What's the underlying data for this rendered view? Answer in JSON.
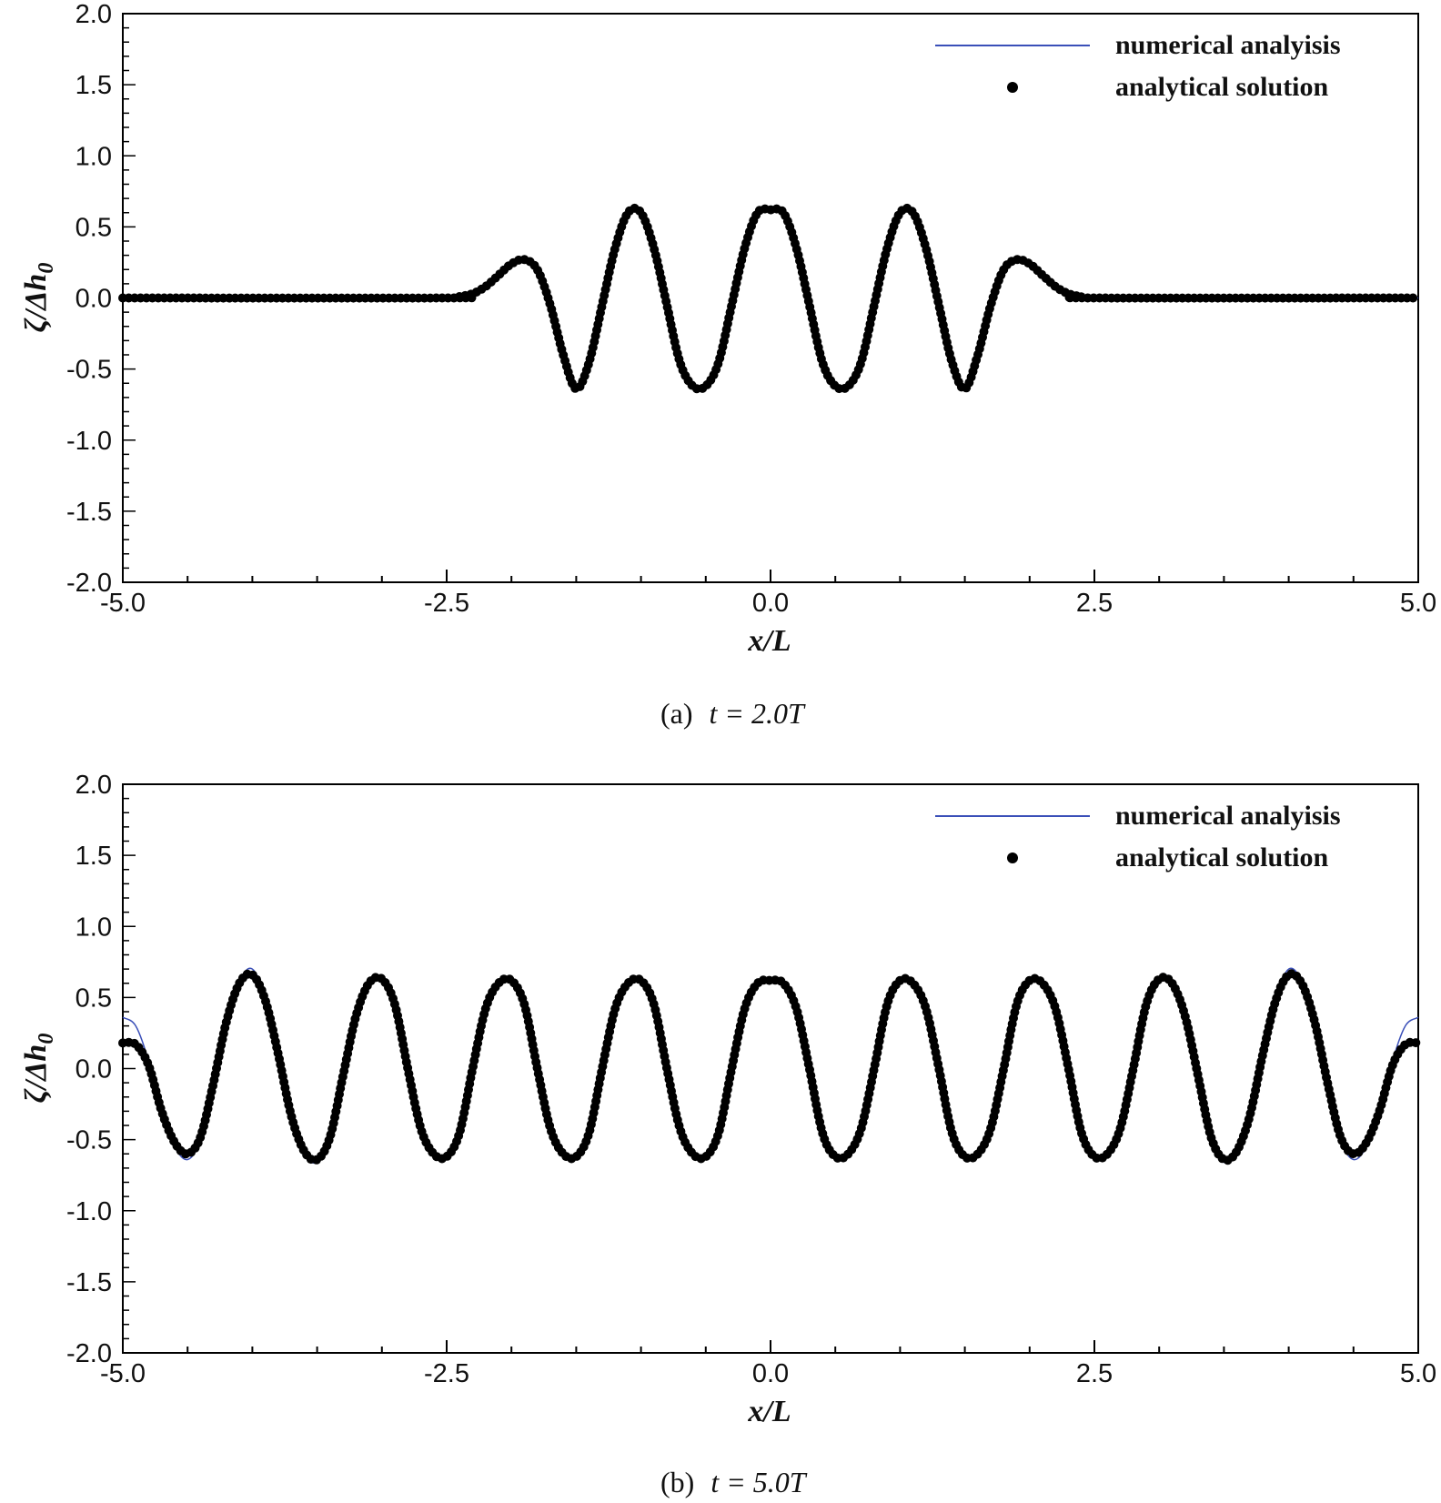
{
  "colors": {
    "numerical_line": "#3a4fb8",
    "analytical_dots": "#000000",
    "axis": "#000000"
  },
  "chart_data": [
    {
      "type": "line",
      "caption": "(a)",
      "caption_math": "t = 2.0T",
      "xlabel": "x/L",
      "ylabel": "ζ/Δh",
      "ylabel_sub": "0",
      "xlim": [
        -5.0,
        5.0
      ],
      "ylim": [
        -2.0,
        2.0
      ],
      "xticks": [
        "-5.0",
        "-2.5",
        "0.0",
        "2.5",
        "5.0"
      ],
      "yticks": [
        "2.0",
        "1.5",
        "1.0",
        "0.5",
        "0.0",
        "-0.5",
        "-1.0",
        "-1.5",
        "-2.0"
      ],
      "legend_position": "top-right",
      "series": [
        {
          "name": "numerical analyisis",
          "style": "line",
          "x": [
            -5.0,
            -2.5,
            -2.4,
            -2.3,
            -2.2,
            -2.1,
            -2.0,
            -1.9,
            -1.8,
            -1.7,
            -1.6,
            -1.5,
            -1.4,
            -1.3,
            -1.2,
            -1.1,
            -1.0,
            -0.9,
            -0.8,
            -0.7,
            -0.6,
            -0.5,
            -0.4,
            -0.3,
            -0.2,
            -0.1,
            0.0,
            0.1,
            0.2,
            0.3,
            0.4,
            0.5,
            0.6,
            0.7,
            0.8,
            0.9,
            1.0,
            1.1,
            1.2,
            1.3,
            1.4,
            1.5,
            1.6,
            1.7,
            1.8,
            1.9,
            2.0,
            2.1,
            2.2,
            2.3,
            2.4,
            2.5,
            5.0
          ],
          "y": [
            0.0,
            0.0,
            0.01,
            0.03,
            0.08,
            0.16,
            0.24,
            0.27,
            0.2,
            -0.05,
            -0.4,
            -0.64,
            -0.45,
            -0.05,
            0.35,
            0.6,
            0.6,
            0.35,
            -0.05,
            -0.45,
            -0.62,
            -0.62,
            -0.45,
            -0.05,
            0.35,
            0.6,
            0.62,
            0.6,
            0.35,
            -0.05,
            -0.45,
            -0.62,
            -0.62,
            -0.45,
            -0.05,
            0.35,
            0.6,
            0.6,
            0.35,
            -0.05,
            -0.45,
            -0.64,
            -0.4,
            -0.05,
            0.2,
            0.27,
            0.24,
            0.16,
            0.08,
            0.03,
            0.01,
            0.0,
            0.0
          ]
        },
        {
          "name": "analytical solution",
          "style": "points",
          "x": [
            -5.0,
            -2.5,
            -2.4,
            -2.3,
            -2.2,
            -2.1,
            -2.0,
            -1.9,
            -1.8,
            -1.7,
            -1.6,
            -1.5,
            -1.4,
            -1.3,
            -1.2,
            -1.1,
            -1.0,
            -0.9,
            -0.8,
            -0.7,
            -0.6,
            -0.5,
            -0.4,
            -0.3,
            -0.2,
            -0.1,
            0.0,
            0.1,
            0.2,
            0.3,
            0.4,
            0.5,
            0.6,
            0.7,
            0.8,
            0.9,
            1.0,
            1.1,
            1.2,
            1.3,
            1.4,
            1.5,
            1.6,
            1.7,
            1.8,
            1.9,
            2.0,
            2.1,
            2.2,
            2.3,
            2.4,
            2.5,
            5.0
          ],
          "y": [
            0.0,
            0.0,
            0.01,
            0.03,
            0.08,
            0.16,
            0.24,
            0.27,
            0.2,
            -0.05,
            -0.4,
            -0.64,
            -0.45,
            -0.05,
            0.35,
            0.6,
            0.6,
            0.35,
            -0.05,
            -0.45,
            -0.62,
            -0.62,
            -0.45,
            -0.05,
            0.35,
            0.6,
            0.62,
            0.6,
            0.35,
            -0.05,
            -0.45,
            -0.62,
            -0.62,
            -0.45,
            -0.05,
            0.35,
            0.6,
            0.6,
            0.35,
            -0.05,
            -0.45,
            -0.64,
            -0.4,
            -0.05,
            0.2,
            0.27,
            0.24,
            0.16,
            0.08,
            0.03,
            0.01,
            0.0,
            0.0
          ]
        }
      ]
    },
    {
      "type": "line",
      "caption": "(b)",
      "caption_math": "t = 5.0T",
      "xlabel": "x/L",
      "ylabel": "ζ/Δh",
      "ylabel_sub": "0",
      "xlim": [
        -5.0,
        5.0
      ],
      "ylim": [
        -2.0,
        2.0
      ],
      "xticks": [
        "-5.0",
        "-2.5",
        "0.0",
        "2.5",
        "5.0"
      ],
      "yticks": [
        "2.0",
        "1.5",
        "1.0",
        "0.5",
        "0.0",
        "-0.5",
        "-1.0",
        "-1.5",
        "-2.0"
      ],
      "legend_position": "top-right",
      "series": [
        {
          "name": "numerical analyisis",
          "style": "line",
          "x": [
            -5.0,
            -4.9,
            -4.8,
            -4.7,
            -4.6,
            -4.5,
            -4.4,
            -4.3,
            -4.2,
            -4.1,
            -4.0,
            -3.9,
            -3.8,
            -3.7,
            -3.6,
            -3.5,
            -3.4,
            -3.3,
            -3.2,
            -3.1,
            -3.0,
            -2.9,
            -2.8,
            -2.7,
            -2.6,
            -2.5,
            -2.4,
            -2.3,
            -2.2,
            -2.1,
            -2.0,
            -1.9,
            -1.8,
            -1.7,
            -1.6,
            -1.5,
            -1.4,
            -1.3,
            -1.2,
            -1.1,
            -1.0,
            -0.9,
            -0.8,
            -0.7,
            -0.6,
            -0.5,
            -0.4,
            -0.3,
            -0.2,
            -0.1,
            0.0,
            0.1,
            0.2,
            0.3,
            0.4,
            0.5,
            0.6,
            0.7,
            0.8,
            0.9,
            1.0,
            1.1,
            1.2,
            1.3,
            1.4,
            1.5,
            1.6,
            1.7,
            1.8,
            1.9,
            2.0,
            2.1,
            2.2,
            2.3,
            2.4,
            2.5,
            2.6,
            2.7,
            2.8,
            2.9,
            3.0,
            3.1,
            3.2,
            3.3,
            3.4,
            3.5,
            3.6,
            3.7,
            3.8,
            3.9,
            4.0,
            4.1,
            4.2,
            4.3,
            4.4,
            4.5,
            4.6,
            4.7,
            4.8,
            4.9,
            5.0
          ],
          "y": [
            0.36,
            0.3,
            0.05,
            -0.3,
            -0.55,
            -0.64,
            -0.5,
            -0.1,
            0.35,
            0.62,
            0.7,
            0.5,
            0.1,
            -0.35,
            -0.6,
            -0.66,
            -0.5,
            -0.05,
            0.38,
            0.62,
            0.64,
            0.45,
            0.0,
            -0.42,
            -0.6,
            -0.62,
            -0.45,
            0.0,
            0.42,
            0.6,
            0.62,
            0.45,
            0.0,
            -0.42,
            -0.6,
            -0.62,
            -0.45,
            0.0,
            0.42,
            0.6,
            0.62,
            0.45,
            0.0,
            -0.42,
            -0.6,
            -0.62,
            -0.45,
            0.0,
            0.42,
            0.6,
            0.62,
            0.6,
            0.42,
            0.0,
            -0.45,
            -0.62,
            -0.6,
            -0.42,
            0.0,
            0.45,
            0.62,
            0.6,
            0.42,
            0.0,
            -0.45,
            -0.62,
            -0.6,
            -0.42,
            0.0,
            0.45,
            0.62,
            0.6,
            0.42,
            0.0,
            -0.45,
            -0.62,
            -0.6,
            -0.42,
            0.0,
            0.45,
            0.64,
            0.62,
            0.38,
            -0.05,
            -0.5,
            -0.66,
            -0.6,
            -0.35,
            0.1,
            0.5,
            0.7,
            0.62,
            0.35,
            -0.1,
            -0.5,
            -0.64,
            -0.55,
            -0.3,
            0.05,
            0.3,
            0.36
          ]
        },
        {
          "name": "analytical solution",
          "style": "points",
          "x": [
            -5.0,
            -4.9,
            -4.8,
            -4.7,
            -4.6,
            -4.5,
            -4.4,
            -4.3,
            -4.2,
            -4.1,
            -4.0,
            -3.9,
            -3.8,
            -3.7,
            -3.6,
            -3.5,
            -3.4,
            -3.3,
            -3.2,
            -3.1,
            -3.0,
            -2.9,
            -2.8,
            -2.7,
            -2.6,
            -2.5,
            -2.4,
            -2.3,
            -2.2,
            -2.1,
            -2.0,
            -1.9,
            -1.8,
            -1.7,
            -1.6,
            -1.5,
            -1.4,
            -1.3,
            -1.2,
            -1.1,
            -1.0,
            -0.9,
            -0.8,
            -0.7,
            -0.6,
            -0.5,
            -0.4,
            -0.3,
            -0.2,
            -0.1,
            0.0,
            0.1,
            0.2,
            0.3,
            0.4,
            0.5,
            0.6,
            0.7,
            0.8,
            0.9,
            1.0,
            1.1,
            1.2,
            1.3,
            1.4,
            1.5,
            1.6,
            1.7,
            1.8,
            1.9,
            2.0,
            2.1,
            2.2,
            2.3,
            2.4,
            2.5,
            2.6,
            2.7,
            2.8,
            2.9,
            3.0,
            3.1,
            3.2,
            3.3,
            3.4,
            3.5,
            3.6,
            3.7,
            3.8,
            3.9,
            4.0,
            4.1,
            4.2,
            4.3,
            4.4,
            4.5,
            4.6,
            4.7,
            4.8,
            4.9,
            5.0
          ],
          "y": [
            0.18,
            0.17,
            0.02,
            -0.3,
            -0.52,
            -0.6,
            -0.48,
            -0.1,
            0.33,
            0.6,
            0.66,
            0.48,
            0.1,
            -0.33,
            -0.58,
            -0.64,
            -0.48,
            -0.05,
            0.37,
            0.6,
            0.63,
            0.45,
            0.0,
            -0.42,
            -0.6,
            -0.62,
            -0.45,
            0.0,
            0.42,
            0.6,
            0.62,
            0.45,
            0.0,
            -0.42,
            -0.6,
            -0.62,
            -0.45,
            0.0,
            0.42,
            0.6,
            0.62,
            0.45,
            0.0,
            -0.42,
            -0.6,
            -0.62,
            -0.45,
            0.0,
            0.42,
            0.6,
            0.62,
            0.6,
            0.42,
            0.0,
            -0.45,
            -0.62,
            -0.6,
            -0.42,
            0.0,
            0.45,
            0.62,
            0.6,
            0.42,
            0.0,
            -0.45,
            -0.62,
            -0.6,
            -0.42,
            0.0,
            0.45,
            0.62,
            0.6,
            0.42,
            0.0,
            -0.45,
            -0.62,
            -0.6,
            -0.42,
            0.0,
            0.45,
            0.63,
            0.6,
            0.37,
            -0.05,
            -0.48,
            -0.64,
            -0.58,
            -0.33,
            0.1,
            0.48,
            0.66,
            0.6,
            0.33,
            -0.1,
            -0.48,
            -0.6,
            -0.52,
            -0.3,
            0.02,
            0.17,
            0.18
          ]
        }
      ]
    }
  ]
}
